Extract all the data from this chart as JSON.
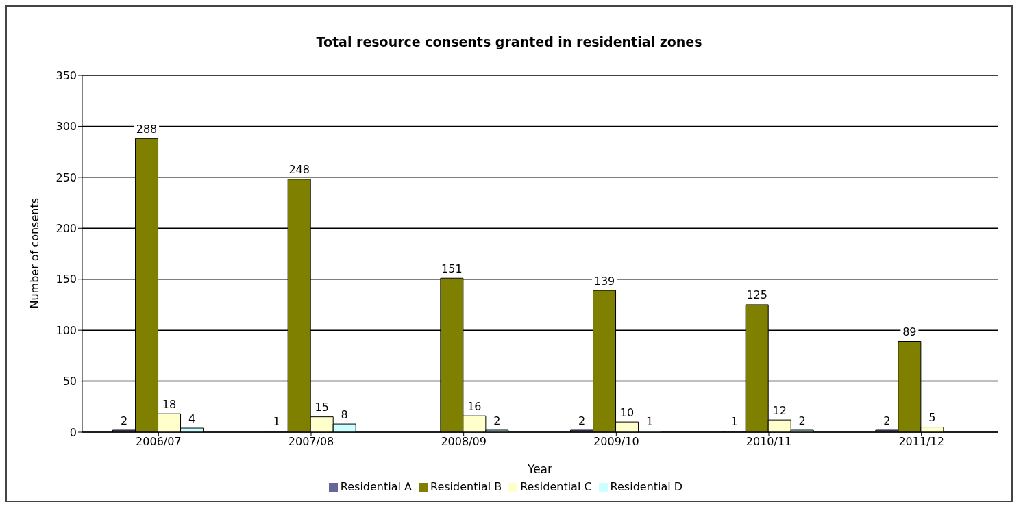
{
  "chart_data": {
    "type": "bar",
    "title": "Total resource consents granted in residential zones",
    "xlabel": "Year",
    "ylabel": "Number of consents",
    "categories": [
      "2006/07",
      "2007/08",
      "2008/09",
      "2009/10",
      "2010/11",
      "2011/12"
    ],
    "series": [
      {
        "name": "Residential A",
        "color": "#666699",
        "values": [
          2,
          1,
          null,
          2,
          1,
          2
        ]
      },
      {
        "name": "Residential B",
        "color": "#808000",
        "values": [
          288,
          248,
          151,
          139,
          125,
          89
        ]
      },
      {
        "name": "Residential C",
        "color": "#ffffcc",
        "values": [
          18,
          15,
          16,
          10,
          12,
          5
        ]
      },
      {
        "name": "Residential D",
        "color": "#ccffff",
        "values": [
          4,
          8,
          2,
          1,
          2,
          null
        ]
      }
    ],
    "ylim": [
      0,
      350
    ],
    "yticks": [
      0,
      50,
      100,
      150,
      200,
      250,
      300,
      350
    ],
    "grid": "y",
    "legend": "bottom",
    "data_labels": true
  }
}
